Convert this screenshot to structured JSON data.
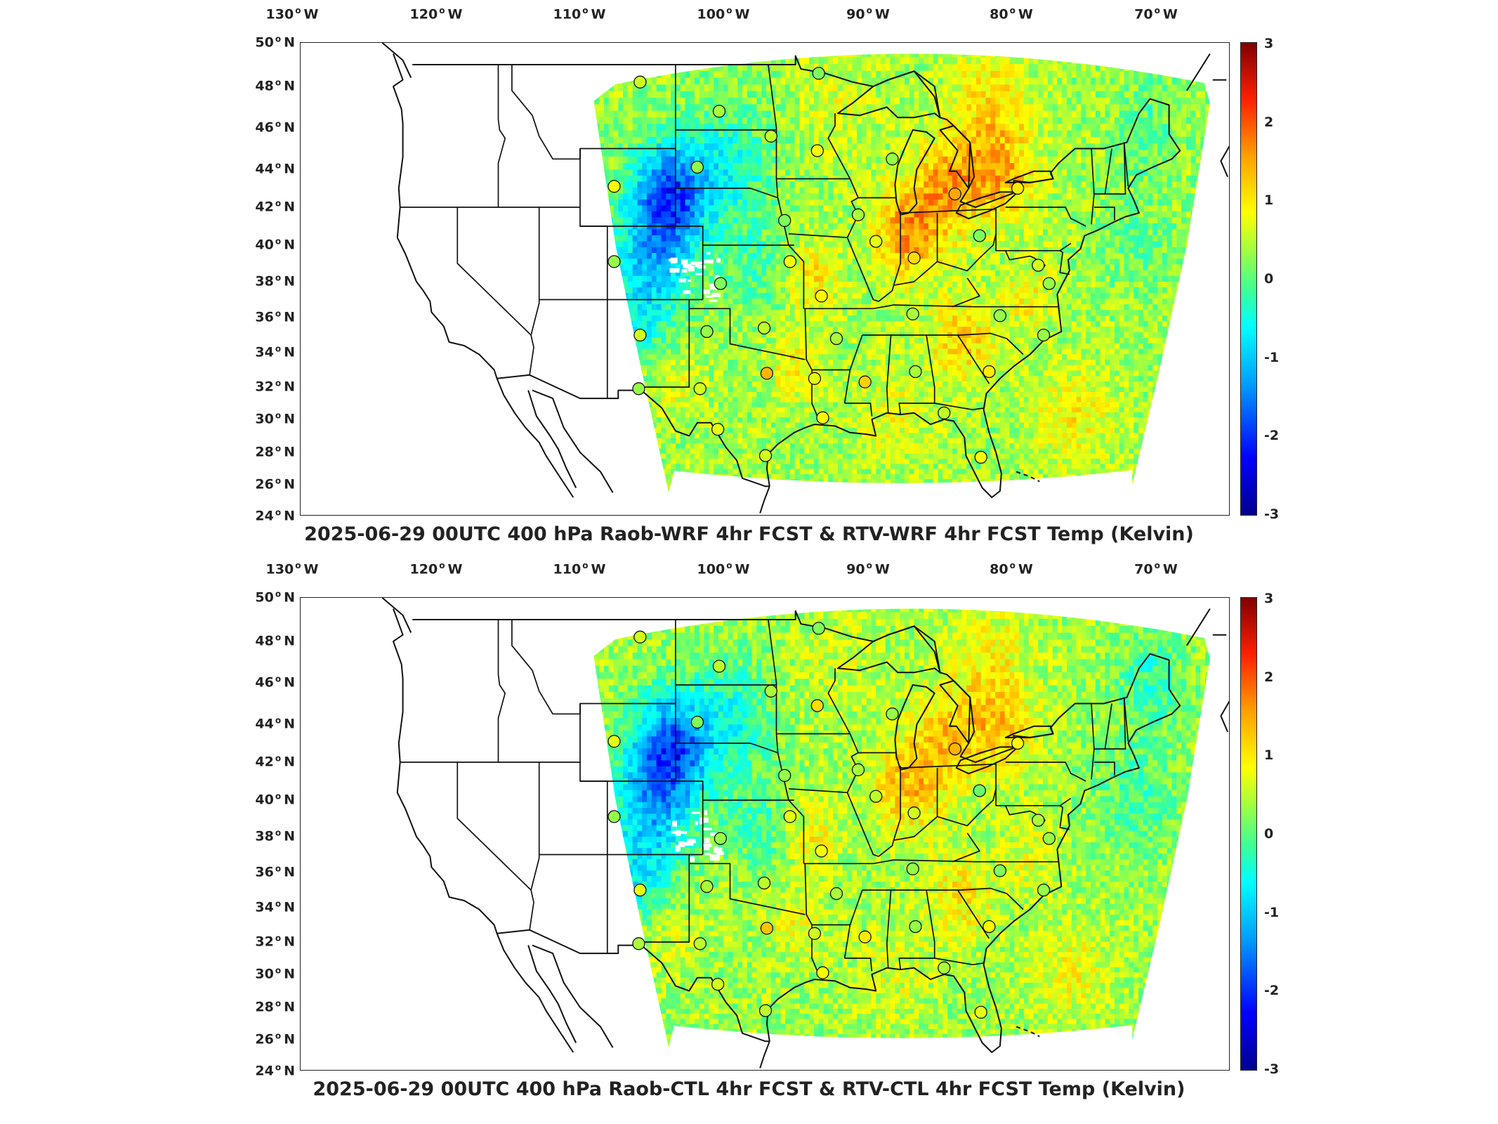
{
  "longitude_labels": [
    {
      "deg": "130",
      "hem": "W"
    },
    {
      "deg": "120",
      "hem": "W"
    },
    {
      "deg": "110",
      "hem": "W"
    },
    {
      "deg": "100",
      "hem": "W"
    },
    {
      "deg": "90",
      "hem": "W"
    },
    {
      "deg": "80",
      "hem": "W"
    },
    {
      "deg": "70",
      "hem": "W"
    }
  ],
  "latitude_labels": [
    {
      "deg": "50",
      "hem": "N"
    },
    {
      "deg": "48",
      "hem": "N"
    },
    {
      "deg": "46",
      "hem": "N"
    },
    {
      "deg": "44",
      "hem": "N"
    },
    {
      "deg": "42",
      "hem": "N"
    },
    {
      "deg": "40",
      "hem": "N"
    },
    {
      "deg": "38",
      "hem": "N"
    },
    {
      "deg": "36",
      "hem": "N"
    },
    {
      "deg": "34",
      "hem": "N"
    },
    {
      "deg": "32",
      "hem": "N"
    },
    {
      "deg": "30",
      "hem": "N"
    },
    {
      "deg": "28",
      "hem": "N"
    },
    {
      "deg": "26",
      "hem": "N"
    },
    {
      "deg": "24",
      "hem": "N"
    }
  ],
  "colorbar_ticks": [
    "3",
    "2",
    "1",
    "0",
    "-1",
    "-2",
    "-3"
  ],
  "colorbar_range": [
    -3,
    3
  ],
  "panels": [
    {
      "title": "2025-06-29 00UTC 400 hPa Raob-WRF 4hr FCST & RTV-WRF 4hr FCST Temp (Kelvin)",
      "stations": [
        {
          "lon": -106.6,
          "lat": 48.2,
          "value": 0.6
        },
        {
          "lon": -100.8,
          "lat": 46.8,
          "value": 0.4
        },
        {
          "lon": -97.0,
          "lat": 45.6,
          "value": 0.5
        },
        {
          "lon": -93.5,
          "lat": 48.6,
          "value": 0.2
        },
        {
          "lon": -93.6,
          "lat": 44.9,
          "value": 0.8
        },
        {
          "lon": -88.1,
          "lat": 44.5,
          "value": 0.3
        },
        {
          "lon": -102.4,
          "lat": 44.1,
          "value": 0.3
        },
        {
          "lon": -108.5,
          "lat": 43.1,
          "value": 0.8
        },
        {
          "lon": -83.5,
          "lat": 42.7,
          "value": 1.5
        },
        {
          "lon": -78.9,
          "lat": 43.0,
          "value": 1.0
        },
        {
          "lon": -96.0,
          "lat": 41.3,
          "value": 0.2
        },
        {
          "lon": -90.6,
          "lat": 41.6,
          "value": 0.4
        },
        {
          "lon": -89.3,
          "lat": 40.2,
          "value": 0.7
        },
        {
          "lon": -108.5,
          "lat": 39.1,
          "value": 0.3
        },
        {
          "lon": -100.7,
          "lat": 37.9,
          "value": 0.2
        },
        {
          "lon": -95.6,
          "lat": 39.1,
          "value": 0.8
        },
        {
          "lon": -86.5,
          "lat": 39.3,
          "value": 1.1
        },
        {
          "lon": -81.7,
          "lat": 40.5,
          "value": 0.2
        },
        {
          "lon": -77.4,
          "lat": 38.9,
          "value": 0.6
        },
        {
          "lon": -76.6,
          "lat": 37.9,
          "value": 0.3
        },
        {
          "lon": -93.3,
          "lat": 37.2,
          "value": 0.9
        },
        {
          "lon": -86.6,
          "lat": 36.2,
          "value": 0.4
        },
        {
          "lon": -80.2,
          "lat": 36.1,
          "value": 0.3
        },
        {
          "lon": -106.6,
          "lat": 35.0,
          "value": 0.6
        },
        {
          "lon": -101.7,
          "lat": 35.2,
          "value": 0.3
        },
        {
          "lon": -97.5,
          "lat": 35.4,
          "value": 0.5
        },
        {
          "lon": -92.2,
          "lat": 34.8,
          "value": 0.4
        },
        {
          "lon": -77.0,
          "lat": 35.0,
          "value": 0.3
        },
        {
          "lon": -97.3,
          "lat": 32.8,
          "value": 1.4
        },
        {
          "lon": -93.8,
          "lat": 32.5,
          "value": 0.7
        },
        {
          "lon": -90.1,
          "lat": 32.3,
          "value": 1.2
        },
        {
          "lon": -86.4,
          "lat": 32.9,
          "value": 0.4
        },
        {
          "lon": -81.0,
          "lat": 32.9,
          "value": 1.0
        },
        {
          "lon": -106.7,
          "lat": 31.9,
          "value": 0.3
        },
        {
          "lon": -102.2,
          "lat": 31.9,
          "value": 0.6
        },
        {
          "lon": -100.9,
          "lat": 29.4,
          "value": 0.7
        },
        {
          "lon": -93.2,
          "lat": 30.1,
          "value": 0.9
        },
        {
          "lon": -84.3,
          "lat": 30.4,
          "value": 0.5
        },
        {
          "lon": -97.4,
          "lat": 27.8,
          "value": 0.6
        },
        {
          "lon": -81.6,
          "lat": 27.7,
          "value": 0.8
        }
      ]
    },
    {
      "title": "2025-06-29 00UTC 400 hPa Raob-CTL 4hr FCST & RTV-CTL 4hr FCST Temp (Kelvin)",
      "stations": [
        {
          "lon": -106.6,
          "lat": 48.2,
          "value": 0.6
        },
        {
          "lon": -100.8,
          "lat": 46.8,
          "value": 0.5
        },
        {
          "lon": -97.0,
          "lat": 45.6,
          "value": 0.4
        },
        {
          "lon": -93.5,
          "lat": 48.6,
          "value": 0.2
        },
        {
          "lon": -93.6,
          "lat": 44.9,
          "value": 1.1
        },
        {
          "lon": -88.1,
          "lat": 44.5,
          "value": 0.3
        },
        {
          "lon": -102.4,
          "lat": 44.1,
          "value": 0.2
        },
        {
          "lon": -108.5,
          "lat": 43.1,
          "value": 0.7
        },
        {
          "lon": -83.5,
          "lat": 42.7,
          "value": 1.4
        },
        {
          "lon": -78.9,
          "lat": 43.0,
          "value": 0.9
        },
        {
          "lon": -96.0,
          "lat": 41.3,
          "value": 0.3
        },
        {
          "lon": -90.6,
          "lat": 41.6,
          "value": 0.4
        },
        {
          "lon": -89.3,
          "lat": 40.2,
          "value": 0.5
        },
        {
          "lon": -108.5,
          "lat": 39.1,
          "value": 0.3
        },
        {
          "lon": -100.7,
          "lat": 37.9,
          "value": 0.3
        },
        {
          "lon": -95.6,
          "lat": 39.1,
          "value": 0.7
        },
        {
          "lon": -86.5,
          "lat": 39.3,
          "value": 0.6
        },
        {
          "lon": -81.7,
          "lat": 40.5,
          "value": 0.1
        },
        {
          "lon": -77.4,
          "lat": 38.9,
          "value": 0.4
        },
        {
          "lon": -76.6,
          "lat": 37.9,
          "value": 0.3
        },
        {
          "lon": -93.3,
          "lat": 37.2,
          "value": 0.8
        },
        {
          "lon": -86.6,
          "lat": 36.2,
          "value": 0.3
        },
        {
          "lon": -80.2,
          "lat": 36.1,
          "value": 0.2
        },
        {
          "lon": -106.6,
          "lat": 35.0,
          "value": 0.7
        },
        {
          "lon": -101.7,
          "lat": 35.2,
          "value": 0.4
        },
        {
          "lon": -97.5,
          "lat": 35.4,
          "value": 0.5
        },
        {
          "lon": -92.2,
          "lat": 34.8,
          "value": 0.4
        },
        {
          "lon": -77.0,
          "lat": 35.0,
          "value": 0.3
        },
        {
          "lon": -97.3,
          "lat": 32.8,
          "value": 1.3
        },
        {
          "lon": -93.8,
          "lat": 32.5,
          "value": 0.6
        },
        {
          "lon": -90.1,
          "lat": 32.3,
          "value": 1.0
        },
        {
          "lon": -86.4,
          "lat": 32.9,
          "value": 0.3
        },
        {
          "lon": -81.0,
          "lat": 32.9,
          "value": 0.9
        },
        {
          "lon": -106.7,
          "lat": 31.9,
          "value": 0.4
        },
        {
          "lon": -102.2,
          "lat": 31.9,
          "value": 0.5
        },
        {
          "lon": -100.9,
          "lat": 29.4,
          "value": 0.6
        },
        {
          "lon": -93.2,
          "lat": 30.1,
          "value": 0.8
        },
        {
          "lon": -84.3,
          "lat": 30.4,
          "value": 0.4
        },
        {
          "lon": -97.4,
          "lat": 27.8,
          "value": 0.5
        },
        {
          "lon": -81.6,
          "lat": 27.7,
          "value": 0.7
        }
      ]
    }
  ]
}
